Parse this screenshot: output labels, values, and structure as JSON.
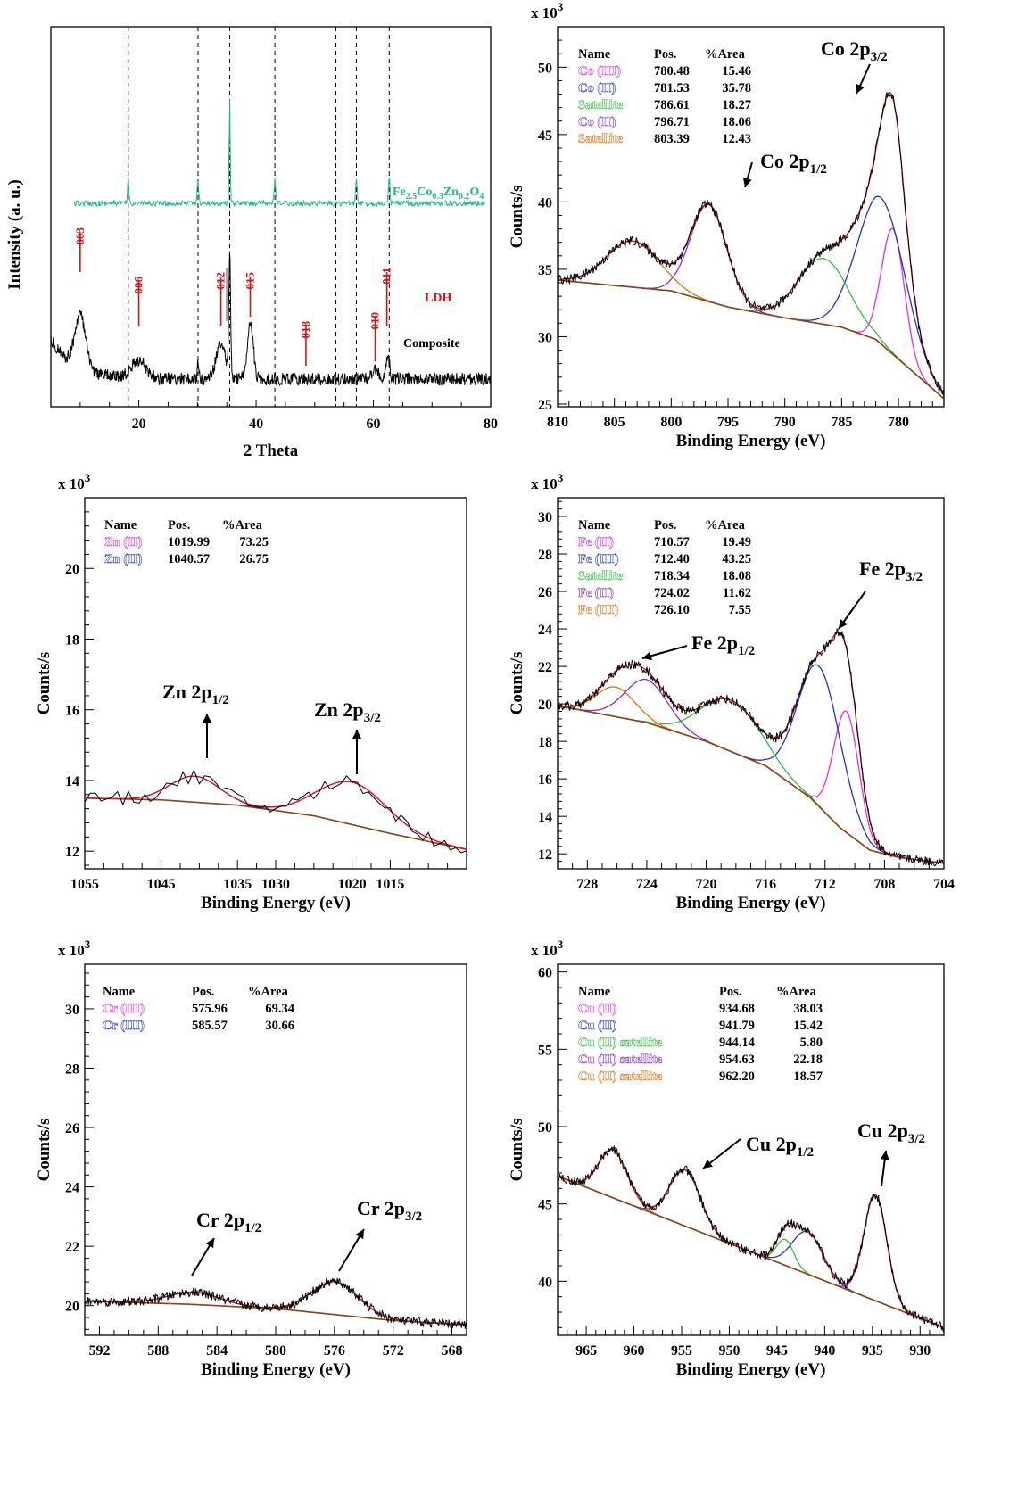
{
  "chart_data": [
    {
      "type": "line",
      "panel": "xrd",
      "xlabel": "2 Theta",
      "ylabel": "Intensity (a. u.)",
      "xlim": [
        5,
        80
      ],
      "x_ticks": [
        20,
        40,
        60,
        80
      ],
      "x_tick_labels": [
        "20",
        "40",
        "60",
        "80"
      ],
      "reference_lines_2theta": [
        18.2,
        30.1,
        35.5,
        43.2,
        53.6,
        57.1,
        62.7
      ],
      "series": [
        {
          "name": "Fe2.5Co0.3Zn0.2O4",
          "color": "#1fb98a",
          "sharp_peaks_2theta": [
            18.2,
            30.1,
            35.5,
            43.2,
            57.1,
            62.7
          ]
        },
        {
          "name": "Composite",
          "color": "#000000",
          "peaks_2theta": [
            10.0,
            20.0,
            34.0,
            35.5,
            39.0,
            48.5,
            60.3,
            62.5
          ]
        }
      ],
      "series_labels": [
        {
          "text": "Fe",
          "sub1": "2.5",
          "t2": "Co",
          "sub2": "0.3",
          "t3": "Zn",
          "sub3": "0.2",
          "t4": "O",
          "sub4": "4",
          "color": "#1fb98a"
        },
        {
          "text": "LDH",
          "color": "#e01010"
        },
        {
          "text": "Composite",
          "color": "#000000"
        }
      ],
      "hkl_labels": [
        {
          "text": "003",
          "x": 10.0
        },
        {
          "text": "006",
          "x": 20.0
        },
        {
          "text": "012",
          "x": 34.0
        },
        {
          "text": "015",
          "x": 39.0
        },
        {
          "text": "018",
          "x": 48.5
        },
        {
          "text": "010",
          "x": 60.3
        },
        {
          "text": "011",
          "x": 62.3
        }
      ]
    },
    {
      "type": "line",
      "panel": "xps-co",
      "multiplier": "x 10",
      "multiplier_exp": "3",
      "xlabel": "Binding Energy (eV)",
      "ylabel": "Counts/s",
      "xlim": [
        810,
        776
      ],
      "ylim": [
        24.8,
        53
      ],
      "x_ticks": [
        810,
        805,
        800,
        795,
        790,
        785,
        780
      ],
      "x_tick_labels": [
        "810",
        "805",
        "800",
        "795",
        "790",
        "785",
        "780"
      ],
      "y_ticks": [
        25,
        30,
        35,
        40,
        45,
        50
      ],
      "y_tick_labels": [
        "25",
        "30",
        "35",
        "40",
        "45",
        "50"
      ],
      "table": {
        "headers": [
          "Name",
          "Pos.",
          "%Area"
        ],
        "rows": [
          {
            "name": "Co (III)",
            "pos": "780.48",
            "area": "15.46",
            "color": "#e030e0"
          },
          {
            "name": "Co (II)",
            "pos": "781.53",
            "area": "35.78",
            "color": "#2030d0"
          },
          {
            "name": "Satellite",
            "pos": "786.61",
            "area": "18.27",
            "color": "#30c040"
          },
          {
            "name": "Co (II)",
            "pos": "796.71",
            "area": "18.06",
            "color": "#8030d0"
          },
          {
            "name": "Satellite",
            "pos": "803.39",
            "area": "12.43",
            "color": "#e07010"
          }
        ]
      },
      "background": {
        "x": [
          810,
          800,
          795,
          790,
          785,
          782,
          779,
          776
        ],
        "y": [
          34.2,
          33.4,
          32.2,
          31.4,
          30.7,
          29.8,
          27.6,
          25.4
        ]
      },
      "components": [
        {
          "center": 780.48,
          "height": 38.0,
          "width": 1.0,
          "color": "#e030e0"
        },
        {
          "center": 781.53,
          "height": 40.3,
          "width": 2.1,
          "color": "#2030d0"
        },
        {
          "center": 786.61,
          "height": 35.8,
          "width": 2.2,
          "color": "#30c040"
        },
        {
          "center": 796.71,
          "height": 39.8,
          "width": 1.6,
          "color": "#8030d0"
        },
        {
          "center": 803.39,
          "height": 37.1,
          "width": 2.3,
          "color": "#e07010"
        }
      ],
      "peak_labels": [
        {
          "main": "Co 2p",
          "sub": "3/2",
          "arrow_to": [
            780.8,
            47.5
          ]
        },
        {
          "main": "Co 2p",
          "sub": "1/2",
          "arrow_to": [
            795.9,
            39.5
          ]
        }
      ]
    },
    {
      "type": "line",
      "panel": "xps-zn",
      "multiplier": "x 10",
      "multiplier_exp": "3",
      "xlabel": "Binding Energy (eV)",
      "ylabel": "Counts/s",
      "xlim": [
        1055,
        1005
      ],
      "ylim": [
        11.5,
        22
      ],
      "x_ticks": [
        1055,
        1045,
        1035,
        1030,
        1020,
        1015
      ],
      "x_tick_labels": [
        "1055",
        "1045",
        "1035",
        "1030",
        "1020",
        "1015"
      ],
      "y_ticks": [
        12,
        14,
        16,
        18,
        20
      ],
      "y_tick_labels": [
        "12",
        "14",
        "16",
        "18",
        "20"
      ],
      "table": {
        "headers": [
          "Name",
          "Pos.",
          "%Area"
        ],
        "rows": [
          {
            "name": "Zn (II)",
            "pos": "1019.99",
            "area": "73.25",
            "color": "#e030e0"
          },
          {
            "name": "Zn (II)",
            "pos": "1040.57",
            "area": "26.75",
            "color": "#2030d0"
          }
        ]
      },
      "background": {
        "x": [
          1055,
          1045,
          1035,
          1025,
          1015,
          1005
        ],
        "y": [
          13.5,
          13.45,
          13.3,
          13.0,
          12.5,
          12.05
        ]
      },
      "components": [
        {
          "center": 1019.99,
          "height": 13.95,
          "width": 4.5,
          "color": "#e030e0"
        },
        {
          "center": 1040.57,
          "height": 14.12,
          "width": 3.2,
          "color": "#2030d0"
        }
      ],
      "peak_labels": [
        {
          "main": "Zn 2p",
          "sub": "1/2",
          "arrow_to": [
            1040.0,
            14.3
          ]
        },
        {
          "main": "Zn 2p",
          "sub": "3/2",
          "arrow_to": [
            1019.0,
            14.0
          ]
        }
      ]
    },
    {
      "type": "line",
      "panel": "xps-fe",
      "multiplier": "x 10",
      "multiplier_exp": "3",
      "xlabel": "Binding Energy (eV)",
      "ylabel": "Counts/s",
      "xlim": [
        730,
        704
      ],
      "ylim": [
        11.2,
        31
      ],
      "x_ticks": [
        728,
        724,
        720,
        716,
        712,
        708,
        704
      ],
      "x_tick_labels": [
        "728",
        "724",
        "720",
        "716",
        "712",
        "708",
        "704"
      ],
      "y_ticks": [
        12,
        14,
        16,
        18,
        20,
        22,
        24,
        26,
        28,
        30
      ],
      "y_tick_labels": [
        "12",
        "14",
        "16",
        "18",
        "20",
        "22",
        "24",
        "26",
        "28",
        "30"
      ],
      "table": {
        "headers": [
          "Name",
          "Pos.",
          "%Area"
        ],
        "rows": [
          {
            "name": "Fe (II)",
            "pos": "710.57",
            "area": "19.49",
            "color": "#e030e0"
          },
          {
            "name": "Fe (III)",
            "pos": "712.40",
            "area": "43.25",
            "color": "#2030d0"
          },
          {
            "name": "Satellite",
            "pos": "718.34",
            "area": "18.08",
            "color": "#30c040"
          },
          {
            "name": "Fe (II)",
            "pos": "724.02",
            "area": "11.62",
            "color": "#8030d0"
          },
          {
            "name": "Fe (III)",
            "pos": "726.10",
            "area": "7.55",
            "color": "#e07010"
          }
        ]
      },
      "background": {
        "x": [
          730,
          724,
          720,
          716,
          713,
          711,
          709,
          707,
          704
        ],
        "y": [
          19.9,
          19.0,
          18.0,
          16.7,
          15.0,
          13.4,
          12.2,
          11.8,
          11.5
        ]
      },
      "components": [
        {
          "center": 710.57,
          "height": 19.6,
          "width": 0.85,
          "color": "#e030e0"
        },
        {
          "center": 712.4,
          "height": 22.0,
          "width": 1.45,
          "color": "#2030d0"
        },
        {
          "center": 718.34,
          "height": 20.2,
          "width": 2.0,
          "color": "#30c040"
        },
        {
          "center": 724.02,
          "height": 21.3,
          "width": 1.45,
          "color": "#8030d0"
        },
        {
          "center": 726.1,
          "height": 20.9,
          "width": 1.3,
          "color": "#e07010"
        }
      ],
      "peak_labels": [
        {
          "main": "Fe 2p",
          "sub": "3/2",
          "arrow_to": [
            710.9,
            24.0
          ]
        },
        {
          "main": "Fe 2p",
          "sub": "1/2",
          "arrow_to": [
            723.7,
            22.6
          ]
        }
      ]
    },
    {
      "type": "line",
      "panel": "xps-cr",
      "multiplier": "x 10",
      "multiplier_exp": "3",
      "xlabel": "Binding Energy (eV)",
      "ylabel": "Counts/s",
      "xlim": [
        593,
        567
      ],
      "ylim": [
        19,
        31.5
      ],
      "x_ticks": [
        592,
        588,
        584,
        580,
        576,
        572,
        568
      ],
      "x_tick_labels": [
        "592",
        "588",
        "584",
        "580",
        "576",
        "572",
        "568"
      ],
      "y_ticks": [
        20,
        22,
        24,
        26,
        28,
        30
      ],
      "y_tick_labels": [
        "20",
        "22",
        "24",
        "26",
        "28",
        "30"
      ],
      "table": {
        "headers": [
          "Name",
          "Pos.",
          "%Area"
        ],
        "rows": [
          {
            "name": "Cr (III)",
            "pos": "575.96",
            "area": "69.34",
            "color": "#e030e0"
          },
          {
            "name": "Cr (III)",
            "pos": "585.57",
            "area": "30.66",
            "color": "#2030d0"
          }
        ]
      },
      "background": {
        "x": [
          593,
          586,
          580,
          576,
          572,
          567
        ],
        "y": [
          20.15,
          20.05,
          19.9,
          19.7,
          19.5,
          19.35
        ]
      },
      "components": [
        {
          "center": 575.96,
          "height": 20.8,
          "width": 1.6,
          "color": "#e030e0"
        },
        {
          "center": 585.57,
          "height": 20.45,
          "width": 1.8,
          "color": "#2030d0"
        }
      ],
      "peak_labels": [
        {
          "main": "Cr 2p",
          "sub": "1/2",
          "arrow_to": [
            585.6,
            20.9
          ]
        },
        {
          "main": "Cr 2p",
          "sub": "3/2",
          "arrow_to": [
            576.5,
            21.1
          ]
        }
      ]
    },
    {
      "type": "line",
      "panel": "xps-cu",
      "multiplier": "x 10",
      "multiplier_exp": "3",
      "xlabel": "Binding Energy (eV)",
      "ylabel": "Counts/s",
      "xlim": [
        968,
        927.5
      ],
      "ylim": [
        36.5,
        60.5
      ],
      "x_ticks": [
        965,
        960,
        955,
        950,
        945,
        940,
        935,
        930
      ],
      "x_tick_labels": [
        "965",
        "960",
        "955",
        "950",
        "945",
        "940",
        "935",
        "930"
      ],
      "y_ticks": [
        40,
        45,
        50,
        55,
        60
      ],
      "y_tick_labels": [
        "40",
        "45",
        "50",
        "55",
        "60"
      ],
      "table": {
        "headers": [
          "Name",
          "Pos.",
          "%Area"
        ],
        "rows": [
          {
            "name": "Cu (II)",
            "pos": "934.68",
            "area": "38.03",
            "color": "#e030e0"
          },
          {
            "name": "Cu (II)",
            "pos": "941.79",
            "area": "15.42",
            "color": "#2030d0"
          },
          {
            "name": "Cu (II) satellite",
            "pos": "944.14",
            "area": "5.80",
            "color": "#30c040"
          },
          {
            "name": "Cu (II) satellite",
            "pos": "954.63",
            "area": "22.18",
            "color": "#8030d0"
          },
          {
            "name": "Cu (II) satellite",
            "pos": "962.20",
            "area": "18.57",
            "color": "#e07010"
          }
        ]
      },
      "background": {
        "x": [
          968,
          927.5
        ],
        "y": [
          46.8,
          37.0
        ]
      },
      "components": [
        {
          "center": 934.68,
          "height": 45.6,
          "width": 1.2,
          "color": "#e030e0"
        },
        {
          "center": 941.79,
          "height": 43.2,
          "width": 1.6,
          "color": "#2030d0"
        },
        {
          "center": 944.14,
          "height": 42.7,
          "width": 0.9,
          "color": "#30c040"
        },
        {
          "center": 954.63,
          "height": 47.2,
          "width": 1.6,
          "color": "#8030d0"
        },
        {
          "center": 962.2,
          "height": 48.5,
          "width": 1.5,
          "color": "#e07010"
        }
      ],
      "peak_labels": [
        {
          "main": "Cu 2p",
          "sub": "1/2",
          "arrow_to": [
            954.5,
            47.6
          ]
        },
        {
          "main": "Cu 2p",
          "sub": "3/2",
          "arrow_to": [
            935.0,
            46.3
          ]
        }
      ]
    }
  ]
}
